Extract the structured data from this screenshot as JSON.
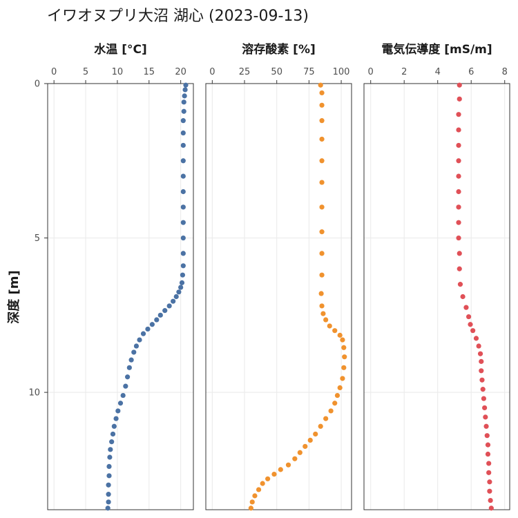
{
  "chart_data": {
    "type": "scatter",
    "title": "イワオヌプリ大沼 湖心 (2023-09-13)",
    "ylabel": "深度 [m]",
    "y_reversed": true,
    "ylim": [
      0,
      13.8
    ],
    "yticks": [
      0,
      5,
      10
    ],
    "grid": true,
    "legend": "none",
    "panels": [
      {
        "name": "水温 [°C]",
        "color": "#4b72a4",
        "xlim": [
          -1,
          22
        ],
        "xticks": [
          0,
          5,
          10,
          15,
          20
        ],
        "points": [
          [
            20.8,
            0.05
          ],
          [
            20.7,
            0.2
          ],
          [
            20.6,
            0.4
          ],
          [
            20.5,
            0.6
          ],
          [
            20.5,
            0.9
          ],
          [
            20.4,
            1.2
          ],
          [
            20.4,
            1.6
          ],
          [
            20.4,
            2.0
          ],
          [
            20.4,
            2.5
          ],
          [
            20.4,
            3.0
          ],
          [
            20.4,
            3.5
          ],
          [
            20.4,
            4.0
          ],
          [
            20.4,
            4.5
          ],
          [
            20.4,
            5.0
          ],
          [
            20.4,
            5.5
          ],
          [
            20.4,
            5.9
          ],
          [
            20.3,
            6.2
          ],
          [
            20.2,
            6.45
          ],
          [
            20.0,
            6.6
          ],
          [
            19.7,
            6.75
          ],
          [
            19.3,
            6.9
          ],
          [
            18.8,
            7.05
          ],
          [
            18.2,
            7.2
          ],
          [
            17.5,
            7.35
          ],
          [
            16.8,
            7.5
          ],
          [
            16.2,
            7.65
          ],
          [
            15.5,
            7.8
          ],
          [
            14.8,
            7.95
          ],
          [
            14.1,
            8.1
          ],
          [
            13.5,
            8.3
          ],
          [
            13.0,
            8.5
          ],
          [
            12.6,
            8.7
          ],
          [
            12.2,
            8.95
          ],
          [
            11.9,
            9.2
          ],
          [
            11.6,
            9.5
          ],
          [
            11.3,
            9.8
          ],
          [
            10.9,
            10.1
          ],
          [
            10.5,
            10.35
          ],
          [
            10.1,
            10.6
          ],
          [
            9.8,
            10.85
          ],
          [
            9.5,
            11.1
          ],
          [
            9.3,
            11.35
          ],
          [
            9.1,
            11.6
          ],
          [
            8.9,
            11.85
          ],
          [
            8.8,
            12.1
          ],
          [
            8.7,
            12.4
          ],
          [
            8.7,
            12.7
          ],
          [
            8.6,
            13.0
          ],
          [
            8.6,
            13.3
          ],
          [
            8.6,
            13.55
          ],
          [
            8.5,
            13.75
          ]
        ]
      },
      {
        "name": "溶存酸素 [%]",
        "color": "#f0922e",
        "xlim": [
          -5,
          108
        ],
        "xticks": [
          0,
          25,
          50,
          75,
          100
        ],
        "points": [
          [
            84,
            0.05
          ],
          [
            85,
            0.3
          ],
          [
            85,
            0.7
          ],
          [
            85,
            1.2
          ],
          [
            85,
            1.8
          ],
          [
            85,
            2.5
          ],
          [
            85,
            3.2
          ],
          [
            85,
            4.0
          ],
          [
            85,
            4.8
          ],
          [
            85,
            5.5
          ],
          [
            85,
            6.2
          ],
          [
            84.5,
            6.8
          ],
          [
            85,
            7.2
          ],
          [
            86,
            7.45
          ],
          [
            88,
            7.65
          ],
          [
            91,
            7.85
          ],
          [
            95,
            8.0
          ],
          [
            99,
            8.15
          ],
          [
            101,
            8.3
          ],
          [
            102,
            8.55
          ],
          [
            102.5,
            8.85
          ],
          [
            102,
            9.2
          ],
          [
            101,
            9.55
          ],
          [
            99,
            9.85
          ],
          [
            97,
            10.1
          ],
          [
            95,
            10.35
          ],
          [
            92,
            10.6
          ],
          [
            88,
            10.85
          ],
          [
            84,
            11.1
          ],
          [
            80,
            11.35
          ],
          [
            76,
            11.55
          ],
          [
            72,
            11.75
          ],
          [
            68,
            11.95
          ],
          [
            64,
            12.15
          ],
          [
            59,
            12.35
          ],
          [
            53,
            12.5
          ],
          [
            48,
            12.65
          ],
          [
            43,
            12.8
          ],
          [
            39,
            12.95
          ],
          [
            36,
            13.15
          ],
          [
            33,
            13.35
          ],
          [
            31,
            13.55
          ],
          [
            30,
            13.75
          ]
        ]
      },
      {
        "name": "電気伝導度 [mS/m]",
        "color": "#e05057",
        "xlim": [
          -0.4,
          8.3
        ],
        "xticks": [
          0,
          2,
          4,
          6,
          8
        ],
        "points": [
          [
            5.3,
            0.05
          ],
          [
            5.3,
            0.5
          ],
          [
            5.25,
            1.0
          ],
          [
            5.25,
            1.5
          ],
          [
            5.25,
            2.0
          ],
          [
            5.25,
            2.5
          ],
          [
            5.25,
            3.0
          ],
          [
            5.25,
            3.5
          ],
          [
            5.25,
            4.0
          ],
          [
            5.25,
            4.5
          ],
          [
            5.25,
            5.0
          ],
          [
            5.3,
            5.5
          ],
          [
            5.3,
            6.0
          ],
          [
            5.35,
            6.5
          ],
          [
            5.5,
            6.9
          ],
          [
            5.7,
            7.25
          ],
          [
            5.85,
            7.55
          ],
          [
            5.95,
            7.8
          ],
          [
            6.1,
            8.0
          ],
          [
            6.3,
            8.25
          ],
          [
            6.45,
            8.5
          ],
          [
            6.55,
            8.75
          ],
          [
            6.6,
            9.0
          ],
          [
            6.6,
            9.3
          ],
          [
            6.65,
            9.6
          ],
          [
            6.7,
            9.9
          ],
          [
            6.75,
            10.2
          ],
          [
            6.8,
            10.5
          ],
          [
            6.85,
            10.8
          ],
          [
            6.9,
            11.1
          ],
          [
            6.95,
            11.4
          ],
          [
            7.0,
            11.7
          ],
          [
            7.0,
            12.0
          ],
          [
            7.05,
            12.3
          ],
          [
            7.05,
            12.6
          ],
          [
            7.1,
            12.9
          ],
          [
            7.1,
            13.2
          ],
          [
            7.15,
            13.5
          ],
          [
            7.2,
            13.75
          ]
        ]
      }
    ]
  }
}
